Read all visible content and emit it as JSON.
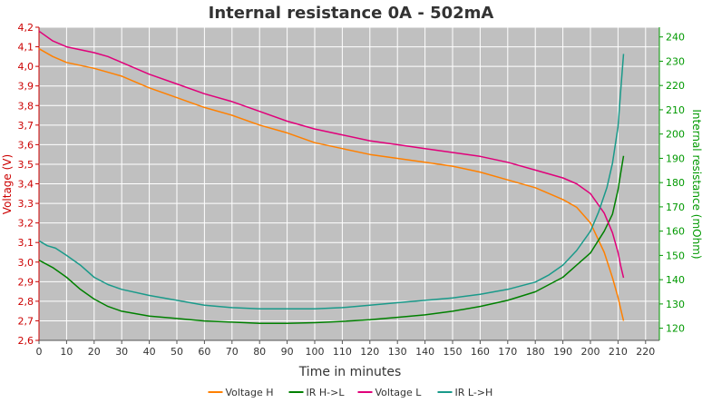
{
  "chart_data": {
    "type": "line",
    "title": "Internal resistance  0A - 502mA",
    "xlabel": "Time in minutes",
    "ylabel_left": "Voltage (V)",
    "ylabel_right": "Internal resistance (mOhm)",
    "xlim": [
      0,
      225
    ],
    "ylim_left": [
      2.6,
      4.2
    ],
    "ylim_right": [
      115,
      244
    ],
    "x_ticks": [
      "0",
      "10",
      "20",
      "30",
      "40",
      "50",
      "60",
      "70",
      "80",
      "90",
      "100",
      "110",
      "120",
      "130",
      "140",
      "150",
      "160",
      "170",
      "180",
      "190",
      "200",
      "210",
      "220"
    ],
    "y_left_ticks": [
      "2,6",
      "2,7",
      "2,8",
      "2,9",
      "3,0",
      "3,1",
      "3,2",
      "3,3",
      "3,4",
      "3,5",
      "3,6",
      "3,7",
      "3,8",
      "3,9",
      "4,0",
      "4,1",
      "4,2"
    ],
    "y_right_ticks": [
      "120",
      "130",
      "140",
      "150",
      "160",
      "170",
      "180",
      "190",
      "200",
      "210",
      "220",
      "230",
      "240"
    ],
    "grid": true,
    "legend_position": "bottom",
    "colors": {
      "plot_bg": "#c0c0c0",
      "grid": "#ffffff",
      "left_axis": "#cc0000",
      "right_axis": "#009900"
    },
    "series": [
      {
        "name": "Voltage H",
        "axis": "left",
        "color": "#ff8000",
        "x": [
          0,
          5,
          10,
          20,
          30,
          40,
          50,
          60,
          70,
          80,
          90,
          100,
          110,
          120,
          130,
          140,
          150,
          160,
          170,
          180,
          190,
          195,
          200,
          205,
          208,
          210,
          211,
          212
        ],
        "y": [
          4.09,
          4.05,
          4.02,
          3.99,
          3.95,
          3.89,
          3.84,
          3.79,
          3.75,
          3.7,
          3.66,
          3.61,
          3.58,
          3.55,
          3.53,
          3.51,
          3.49,
          3.46,
          3.42,
          3.38,
          3.32,
          3.28,
          3.2,
          3.05,
          2.92,
          2.82,
          2.76,
          2.7
        ]
      },
      {
        "name": "IR H->L",
        "axis": "right",
        "color": "#008000",
        "x": [
          0,
          5,
          10,
          15,
          20,
          25,
          30,
          40,
          50,
          60,
          70,
          80,
          90,
          100,
          110,
          120,
          130,
          140,
          150,
          160,
          170,
          180,
          190,
          200,
          205,
          208,
          210,
          211,
          212
        ],
        "y": [
          148,
          145,
          141,
          136,
          132,
          129,
          127,
          125,
          124,
          123,
          122.5,
          122,
          122,
          122.3,
          122.8,
          123.5,
          124.5,
          125.5,
          127,
          129,
          131.5,
          135,
          141,
          151,
          160,
          167,
          177,
          184,
          191
        ]
      },
      {
        "name": "Voltage L",
        "axis": "left",
        "color": "#e0007a",
        "x": [
          0,
          5,
          10,
          20,
          25,
          30,
          40,
          50,
          60,
          70,
          80,
          90,
          100,
          110,
          120,
          130,
          140,
          150,
          160,
          170,
          180,
          190,
          195,
          200,
          205,
          208,
          210,
          211,
          212
        ],
        "y": [
          4.18,
          4.13,
          4.1,
          4.07,
          4.05,
          4.02,
          3.96,
          3.91,
          3.86,
          3.82,
          3.77,
          3.72,
          3.68,
          3.65,
          3.62,
          3.6,
          3.58,
          3.56,
          3.54,
          3.51,
          3.47,
          3.43,
          3.4,
          3.35,
          3.25,
          3.15,
          3.05,
          2.98,
          2.92
        ]
      },
      {
        "name": "IR L->H",
        "axis": "right",
        "color": "#1a9a8a",
        "x": [
          0,
          3,
          6,
          10,
          15,
          20,
          25,
          30,
          40,
          50,
          60,
          70,
          80,
          90,
          100,
          110,
          120,
          130,
          140,
          150,
          160,
          170,
          180,
          185,
          190,
          195,
          200,
          203,
          206,
          208,
          210,
          211,
          212
        ],
        "y": [
          156,
          154,
          153,
          150,
          146,
          141,
          138,
          136,
          133.5,
          131.5,
          129.5,
          128.5,
          128,
          128,
          128,
          128.5,
          129.5,
          130.5,
          131.5,
          132.5,
          134,
          136,
          139,
          142,
          146,
          152,
          160,
          168,
          178,
          188,
          203,
          218,
          233
        ]
      }
    ]
  }
}
